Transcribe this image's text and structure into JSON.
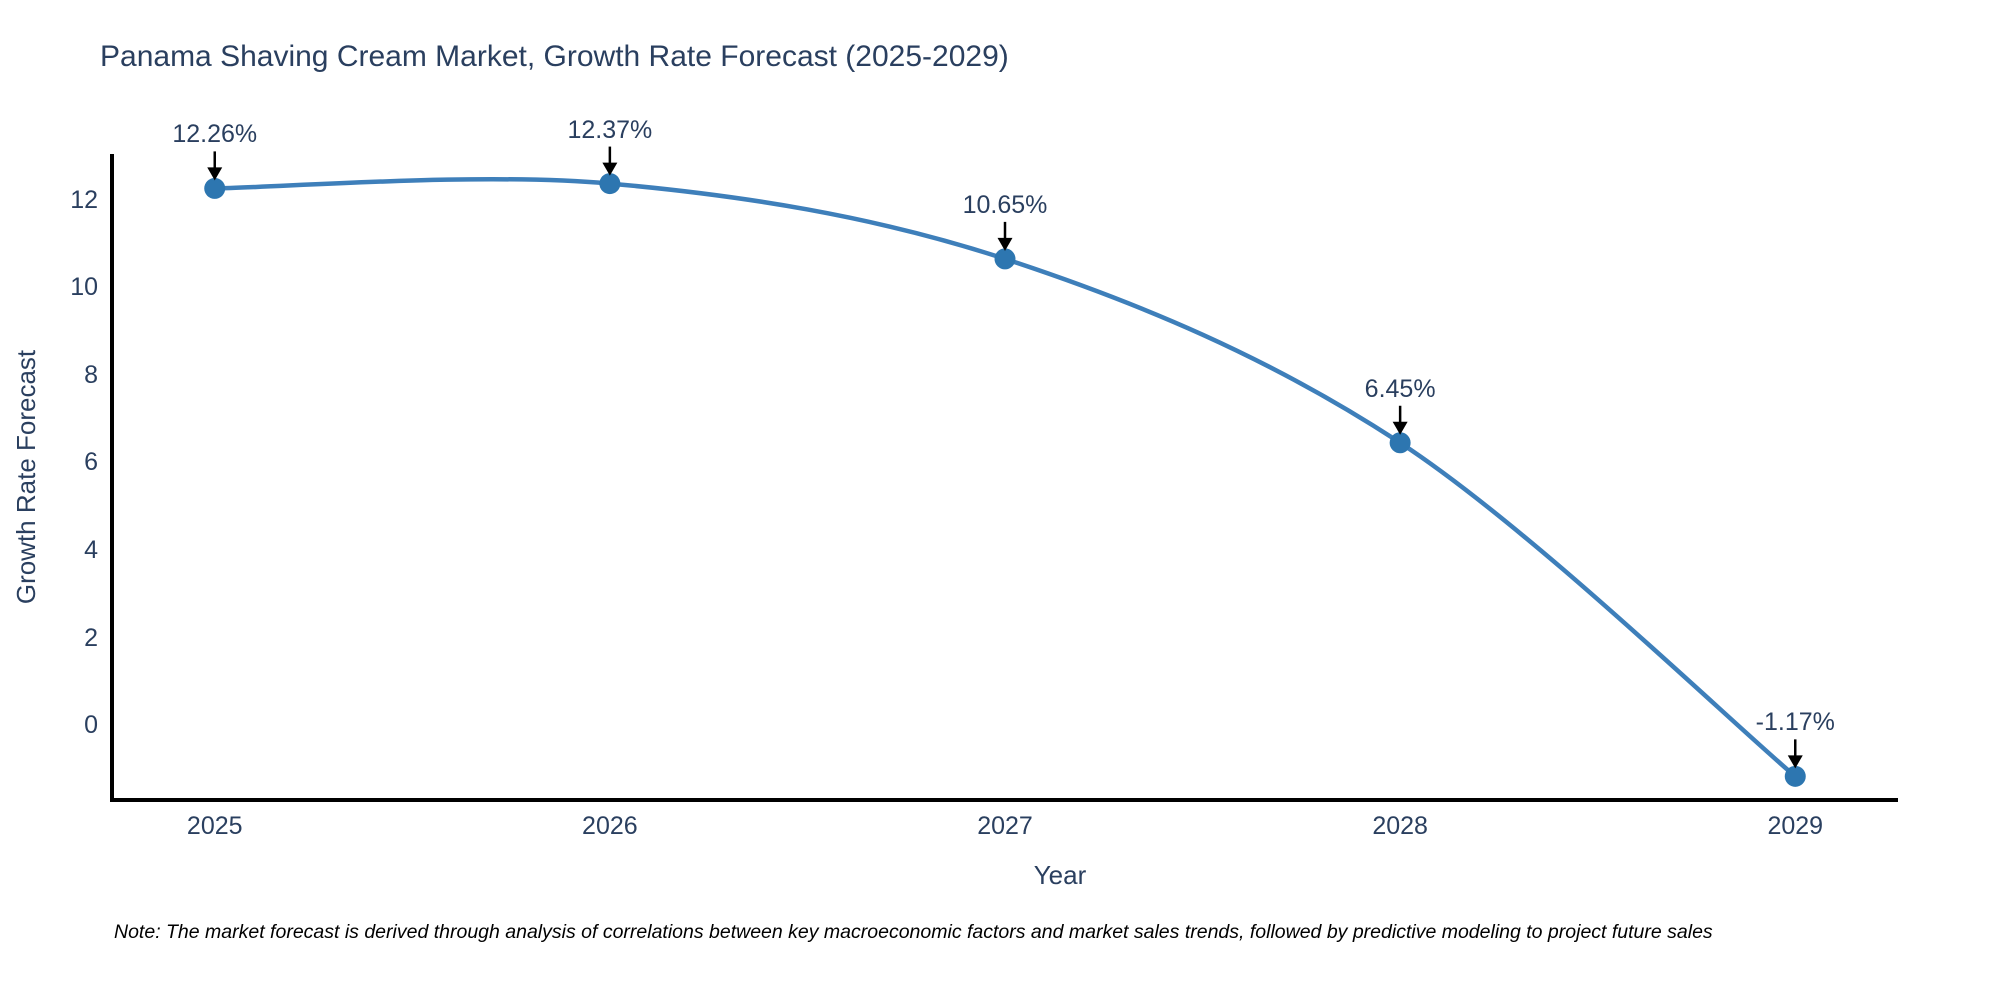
{
  "chart_data": {
    "type": "line",
    "title": "Panama Shaving Cream Market, Growth Rate Forecast (2025-2029)",
    "xlabel": "Year",
    "ylabel": "Growth Rate Forecast",
    "x": [
      2025,
      2026,
      2027,
      2028,
      2029
    ],
    "series": [
      {
        "name": "Growth Rate Forecast",
        "values": [
          12.26,
          12.37,
          10.65,
          6.45,
          -1.17
        ]
      }
    ],
    "point_labels": [
      "12.26%",
      "12.37%",
      "10.65%",
      "6.45%",
      "-1.17%"
    ],
    "x_tick_labels": [
      "2025",
      "2026",
      "2027",
      "2028",
      "2029"
    ],
    "y_tick_values": [
      0,
      2,
      4,
      6,
      8,
      10,
      12
    ],
    "xlim": [
      2024.74,
      2029.26
    ],
    "ylim": [
      -1.71,
      13.0
    ],
    "line_shape": "spline",
    "grid": false,
    "legend_position": "none",
    "colors": {
      "line": "#3e7fba",
      "marker": "#2d76b0",
      "axis": "#000000",
      "text": "#2a3f5f",
      "arrow": "#000000"
    }
  },
  "note": "Note: The market forecast is derived through analysis of correlations between key macroeconomic factors and market sales trends, followed by predictive modeling to project future sales"
}
